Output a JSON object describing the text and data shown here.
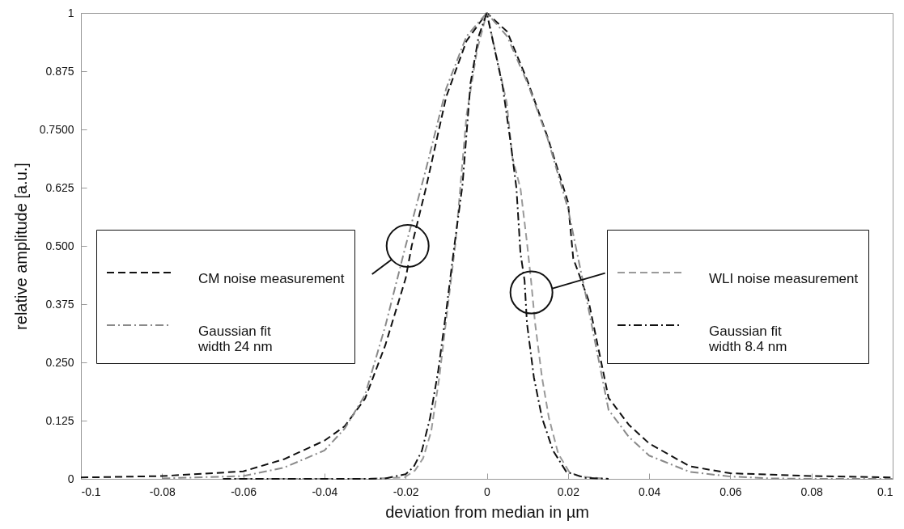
{
  "chart_data": {
    "type": "line",
    "xlabel": "deviation from median in µm",
    "ylabel": "relative amplitude [a.u.]",
    "xlim": [
      -0.1,
      0.1
    ],
    "xticks": [
      -0.1,
      -0.08,
      -0.06,
      -0.04,
      -0.02,
      0,
      0.02,
      0.04,
      0.06,
      0.08,
      0.1
    ],
    "ylim": [
      0,
      1
    ],
    "yticks": [
      0,
      0.125,
      {
        "value": 0.25,
        "label": "0.250"
      },
      0.375,
      {
        "value": 0.5,
        "label": "0.500"
      },
      0.625,
      {
        "value": 0.75,
        "label": "0.7500"
      },
      0.875,
      1
    ],
    "grid": false,
    "legend": "left",
    "marker": "none",
    "series": [
      {
        "name": "CM noise measurement",
        "color": "#111111",
        "line_style": "dashed",
        "x": [
          -0.1,
          -0.08,
          -0.06,
          -0.05,
          -0.04,
          -0.035,
          -0.03,
          -0.025,
          -0.02,
          -0.0185,
          -0.015,
          -0.01,
          -0.005,
          0,
          0.005,
          0.01,
          0.015,
          0.02,
          0.0213,
          0.025,
          0.03,
          0.035,
          0.04,
          0.05,
          0.06,
          0.07,
          0.08,
          0.1
        ],
        "values": [
          0.003,
          0.006,
          0.016,
          0.042,
          0.082,
          0.113,
          0.172,
          0.287,
          0.43,
          0.5,
          0.624,
          0.82,
          0.94,
          1,
          0.96,
          0.855,
          0.733,
          0.594,
          0.473,
          0.385,
          0.174,
          0.116,
          0.076,
          0.027,
          0.012,
          0.009,
          0.006,
          0.003
        ]
      },
      {
        "name": "Gaussian fit\nwidth 24 nm",
        "color": "#8a8a8a",
        "line_style": "dashdot",
        "x": [
          -0.08,
          -0.06,
          -0.05,
          -0.04,
          -0.035,
          -0.03,
          -0.025,
          -0.02,
          -0.015,
          -0.01,
          -0.005,
          0,
          0.005,
          0.01,
          0.015,
          0.02,
          0.025,
          0.03,
          0.035,
          0.04,
          0.05,
          0.06,
          0.07,
          0.08,
          0.1
        ],
        "values": [
          0.001,
          0.006,
          0.024,
          0.061,
          0.108,
          0.18,
          0.328,
          0.5,
          0.664,
          0.838,
          0.95,
          1,
          0.95,
          0.85,
          0.73,
          0.58,
          0.368,
          0.148,
          0.09,
          0.05,
          0.015,
          0.005,
          0.001,
          0,
          0
        ]
      },
      {
        "name": "WLI noise measurement",
        "color": "#9a9a9a",
        "line_style": "dashed",
        "x": [
          -0.065,
          -0.03,
          -0.0203,
          -0.0177,
          -0.0157,
          -0.0137,
          -0.0117,
          -0.0097,
          -0.0077,
          -0.005,
          -0.0024,
          0,
          0.0049,
          0.0063,
          0.0083,
          0.0099,
          0.0109,
          0.0119,
          0.0136,
          0.0153,
          0.0176,
          0.0203,
          0.0229,
          0.03
        ],
        "values": [
          0,
          0,
          0.003,
          0.018,
          0.044,
          0.102,
          0.218,
          0.363,
          0.507,
          0.78,
          0.92,
          1,
          0.808,
          0.69,
          0.623,
          0.507,
          0.426,
          0.334,
          0.218,
          0.131,
          0.054,
          0.015,
          0.005,
          0
        ]
      },
      {
        "name": "Gaussian fit\nwidth 8.4 nm",
        "color": "#111111",
        "line_style": "dashdot",
        "x": [
          -0.065,
          -0.03,
          -0.025,
          -0.02,
          -0.018,
          -0.016,
          -0.014,
          -0.012,
          -0.01,
          -0.008,
          -0.006,
          -0.004,
          -0.002,
          0,
          0.0039,
          0.0059,
          0.0073,
          0.0083,
          0.0093,
          0.0099,
          0.0116,
          0.0136,
          0.0163,
          0.0196,
          0.0243,
          0.03
        ],
        "values": [
          0,
          0,
          0.001,
          0.01,
          0.026,
          0.06,
          0.13,
          0.23,
          0.36,
          0.5,
          0.63,
          0.85,
          0.95,
          1,
          0.843,
          0.72,
          0.624,
          0.484,
          0.426,
          0.334,
          0.218,
          0.131,
          0.061,
          0.015,
          0.002,
          0
        ]
      }
    ]
  }
}
